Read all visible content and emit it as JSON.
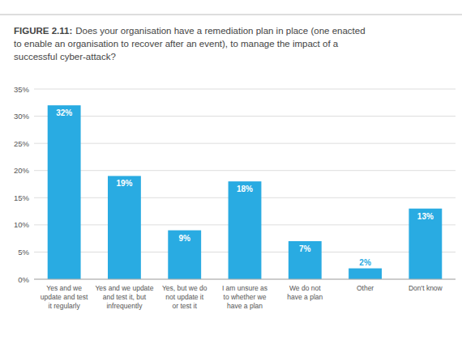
{
  "chart_data": {
    "type": "bar",
    "title": "FIGURE 2.11:",
    "subtitle": "Does your organisation have a remediation plan in place (one enacted\nto enable an organisation to recover after an event), to manage the impact of a\nsuccessful cyber-attack?",
    "categories": [
      "Yes and we\nupdate and test\nit regularly",
      "Yes and we update\nand test it, but\ninfrequently",
      "Yes, but we do\nnot update it\nor test it",
      "I am unsure as\nto whether we\nhave a plan",
      "We do not\nhave a plan",
      "Other",
      "Don't know"
    ],
    "values": [
      32,
      19,
      9,
      18,
      7,
      2,
      13
    ],
    "value_labels": [
      "32%",
      "19%",
      "9%",
      "18%",
      "7%",
      "2%",
      "13%"
    ],
    "data_labels": true,
    "color": "#29ABE2",
    "ylim": [
      0,
      35
    ],
    "yticks": [
      {
        "value": 0,
        "label": "0%"
      },
      {
        "value": 5,
        "label": "5%"
      },
      {
        "value": 10,
        "label": "10%"
      },
      {
        "value": 15,
        "label": "15%"
      },
      {
        "value": 20,
        "label": "20%"
      },
      {
        "value": 25,
        "label": "25%"
      },
      {
        "value": 30,
        "label": "30%"
      },
      {
        "value": 35,
        "label": "35%"
      }
    ],
    "grid": true
  }
}
